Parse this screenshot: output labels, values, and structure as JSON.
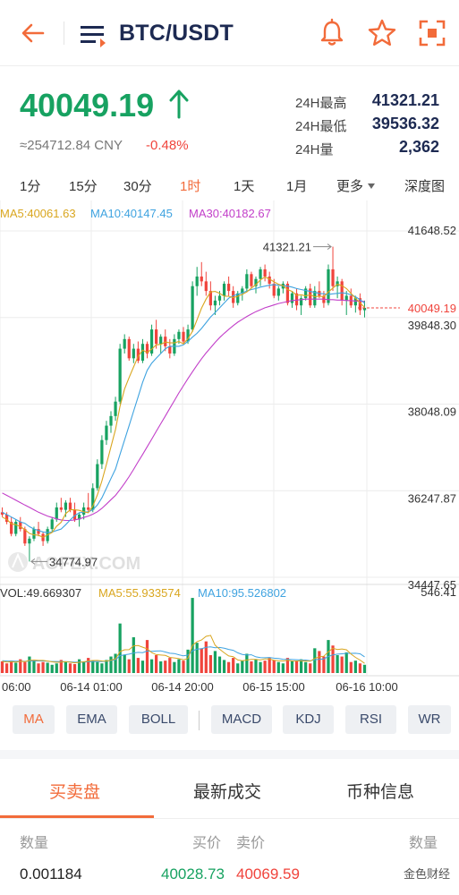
{
  "header": {
    "pair": "BTC/USDT",
    "icons": [
      "back-arrow-icon",
      "menu-list-icon",
      "bell-icon",
      "star-icon",
      "fullscreen-icon"
    ]
  },
  "ticker": {
    "last_price": "40049.19",
    "cny_value": "≈254712.84 CNY",
    "change_pct": "-0.48%",
    "high_label": "24H最高",
    "high_value": "41321.21",
    "low_label": "24H最低",
    "low_value": "39536.32",
    "vol_label": "24H量",
    "vol_value": "2,362"
  },
  "timeframes": [
    "1分",
    "15分",
    "30分",
    "1时",
    "1天",
    "1月",
    "更多",
    "深度图"
  ],
  "active_timeframe": "1时",
  "ma_legend": {
    "ma5": "MA5:40061.63",
    "ma10": "MA10:40147.45",
    "ma30": "MA30:40182.67"
  },
  "vol_legend": {
    "vol": "VOL:49.669307",
    "ma5": "MA5:55.933574",
    "ma10": "MA10:95.526802"
  },
  "watermark_logo": "AOFEX.COM",
  "colors": {
    "up": "#17a261",
    "down": "#f0443c",
    "accent": "#f26b3a",
    "ma5": "#d9a61f",
    "ma10": "#3fa3e0",
    "ma30": "#c23fc9",
    "navy": "#1d2a52"
  },
  "chart_data": {
    "type": "candlestick",
    "price_axis_ticks": [
      "41648.52",
      "39848.30",
      "38048.09",
      "36247.87",
      "34447.65"
    ],
    "current_price_label": "40049.19",
    "max_marker": "41321.21",
    "min_marker": "34774.97",
    "volume_axis_max": "546.41",
    "time_labels": [
      "06:00",
      "06-14 01:00",
      "06-14 20:00",
      "06-15 15:00",
      "06-16 10:00"
    ],
    "ylim": [
      34447.65,
      41648.52
    ],
    "candles": [
      [
        35800,
        35900,
        35700,
        35750
      ],
      [
        35750,
        35800,
        35550,
        35600
      ],
      [
        35600,
        35700,
        35300,
        35350
      ],
      [
        35350,
        35650,
        35300,
        35600
      ],
      [
        35600,
        35700,
        35400,
        35450
      ],
      [
        35450,
        35500,
        35100,
        35150
      ],
      [
        35150,
        35300,
        34775,
        35250
      ],
      [
        35250,
        35500,
        35200,
        35450
      ],
      [
        35450,
        35600,
        35300,
        35350
      ],
      [
        35350,
        35400,
        35100,
        35200
      ],
      [
        35200,
        35500,
        35150,
        35450
      ],
      [
        35450,
        35700,
        35400,
        35650
      ],
      [
        35650,
        36000,
        35600,
        35900
      ],
      [
        35900,
        36100,
        35800,
        35850
      ],
      [
        35850,
        36050,
        35700,
        36000
      ],
      [
        36000,
        36100,
        35800,
        35850
      ],
      [
        35850,
        36000,
        35600,
        35650
      ],
      [
        35650,
        35800,
        35500,
        35750
      ],
      [
        35750,
        36000,
        35650,
        35900
      ],
      [
        35900,
        36200,
        35800,
        35850
      ],
      [
        35850,
        36400,
        35800,
        36300
      ],
      [
        36300,
        36900,
        36250,
        36800
      ],
      [
        36800,
        37400,
        36700,
        37300
      ],
      [
        37300,
        37700,
        37200,
        37600
      ],
      [
        37600,
        37900,
        37450,
        37800
      ],
      [
        37800,
        38200,
        37700,
        38100
      ],
      [
        38100,
        39300,
        38050,
        39200
      ],
      [
        39200,
        39500,
        39100,
        39400
      ],
      [
        39400,
        39450,
        38950,
        39000
      ],
      [
        39000,
        39300,
        38900,
        39200
      ],
      [
        39200,
        39350,
        38900,
        38950
      ],
      [
        38950,
        39400,
        38900,
        39300
      ],
      [
        39300,
        39350,
        39000,
        39100
      ],
      [
        39100,
        39700,
        39050,
        39600
      ],
      [
        39600,
        39800,
        39200,
        39300
      ],
      [
        39300,
        39500,
        39100,
        39450
      ],
      [
        39450,
        39600,
        39150,
        39250
      ],
      [
        39250,
        39400,
        39000,
        39100
      ],
      [
        39100,
        39500,
        39050,
        39400
      ],
      [
        39400,
        39600,
        39300,
        39550
      ],
      [
        39550,
        39650,
        39300,
        39350
      ],
      [
        39350,
        39700,
        39300,
        39600
      ],
      [
        39600,
        40600,
        39550,
        40500
      ],
      [
        40500,
        40900,
        40300,
        40700
      ],
      [
        40700,
        41000,
        40500,
        40600
      ],
      [
        40600,
        40800,
        40300,
        40400
      ],
      [
        40400,
        40600,
        40000,
        40100
      ],
      [
        40100,
        40300,
        39900,
        40200
      ],
      [
        40200,
        40400,
        40100,
        40300
      ],
      [
        40300,
        40600,
        40200,
        40550
      ],
      [
        40550,
        40700,
        40300,
        40400
      ],
      [
        40400,
        40500,
        40050,
        40150
      ],
      [
        40150,
        40400,
        40100,
        40350
      ],
      [
        40350,
        40500,
        40200,
        40450
      ],
      [
        40450,
        40850,
        40400,
        40750
      ],
      [
        40750,
        40800,
        40450,
        40500
      ],
      [
        40500,
        40700,
        40350,
        40650
      ],
      [
        40650,
        40900,
        40500,
        40850
      ],
      [
        40850,
        40950,
        40600,
        40700
      ],
      [
        40700,
        40800,
        40450,
        40550
      ],
      [
        40550,
        40650,
        40250,
        40300
      ],
      [
        40300,
        40500,
        40200,
        40450
      ],
      [
        40450,
        40600,
        40350,
        40550
      ],
      [
        40550,
        40600,
        40100,
        40150
      ],
      [
        40150,
        40400,
        40050,
        40350
      ],
      [
        40350,
        40450,
        40000,
        40100
      ],
      [
        40100,
        40300,
        39900,
        40250
      ],
      [
        40250,
        40500,
        40200,
        40450
      ],
      [
        40450,
        40550,
        40050,
        40100
      ],
      [
        40100,
        40500,
        40050,
        40400
      ],
      [
        40400,
        40600,
        40250,
        40300
      ],
      [
        40300,
        40400,
        40050,
        40150
      ],
      [
        40150,
        40950,
        40100,
        40850
      ],
      [
        40850,
        41321.21,
        40400,
        40500
      ],
      [
        40500,
        40700,
        40250,
        40600
      ],
      [
        40600,
        40650,
        40100,
        40200
      ],
      [
        40200,
        40400,
        39900,
        40300
      ],
      [
        40300,
        40450,
        40050,
        40100
      ],
      [
        40100,
        40300,
        39950,
        40250
      ],
      [
        40250,
        40350,
        39900,
        40000
      ],
      [
        40000,
        40200,
        39850,
        40049.19
      ]
    ],
    "ma5": [
      35700,
      35650,
      35560,
      35540,
      35500,
      35440,
      35360,
      35330,
      35320,
      35280,
      35330,
      35380,
      35510,
      35590,
      35770,
      35850,
      35850,
      35840,
      35810,
      35790,
      35930,
      36160,
      36450,
      36800,
      37160,
      37520,
      38000,
      38360,
      38600,
      38820,
      39040,
      39170,
      39120,
      39190,
      39280,
      39290,
      39340,
      39320,
      39320,
      39350,
      39300,
      39410,
      39560,
      39800,
      40040,
      40230,
      40380,
      40390,
      40350,
      40290,
      40290,
      40260,
      40290,
      40330,
      40380,
      40460,
      40530,
      40630,
      40690,
      40650,
      40590,
      40540,
      40510,
      40430,
      40390,
      40310,
      40320,
      40300,
      40320,
      40280,
      40290,
      40280,
      40380,
      40460,
      40540,
      40510,
      40450,
      40350,
      40250,
      40150,
      40061
    ],
    "ma10": [
      35800,
      35750,
      35700,
      35650,
      35600,
      35570,
      35500,
      35450,
      35420,
      35390,
      35380,
      35390,
      35420,
      35450,
      35540,
      35640,
      35730,
      35790,
      35800,
      35810,
      35850,
      35950,
      36100,
      36300,
      36500,
      36700,
      37000,
      37300,
      37600,
      37900,
      38200,
      38500,
      38750,
      38900,
      39000,
      39100,
      39200,
      39250,
      39250,
      39250,
      39280,
      39350,
      39440,
      39520,
      39620,
      39740,
      39860,
      39950,
      40050,
      40150,
      40250,
      40300,
      40330,
      40360,
      40400,
      40430,
      40450,
      40480,
      40500,
      40520,
      40530,
      40520,
      40510,
      40500,
      40480,
      40450,
      40430,
      40410,
      40390,
      40370,
      40350,
      40340,
      40330,
      40340,
      40350,
      40360,
      40350,
      40320,
      40280,
      40220,
      40147
    ],
    "ma30": [
      36200,
      36150,
      36100,
      36050,
      36000,
      35950,
      35900,
      35850,
      35800,
      35760,
      35720,
      35690,
      35660,
      35640,
      35630,
      35630,
      35640,
      35660,
      35690,
      35720,
      35760,
      35810,
      35880,
      35970,
      36060,
      36150,
      36270,
      36400,
      36540,
      36690,
      36850,
      37000,
      37160,
      37320,
      37480,
      37640,
      37800,
      37960,
      38120,
      38280,
      38430,
      38580,
      38720,
      38860,
      38990,
      39110,
      39220,
      39330,
      39430,
      39520,
      39600,
      39680,
      39750,
      39810,
      39870,
      39920,
      39970,
      40010,
      40050,
      40080,
      40110,
      40140,
      40160,
      40180,
      40200,
      40210,
      40220,
      40230,
      40230,
      40230,
      40230,
      40230,
      40220,
      40220,
      40210,
      40210,
      40200,
      40200,
      40190,
      40190,
      40183
    ],
    "volume_max": 546.41,
    "volumes": [
      85,
      70,
      90,
      75,
      100,
      80,
      120,
      90,
      70,
      80,
      75,
      60,
      70,
      95,
      80,
      70,
      65,
      100,
      85,
      110,
      90,
      80,
      70,
      95,
      120,
      140,
      360,
      130,
      100,
      260,
      110,
      90,
      240,
      100,
      130,
      85,
      90,
      110,
      80,
      100,
      90,
      170,
      546,
      220,
      180,
      230,
      130,
      160,
      120,
      95,
      80,
      110,
      70,
      90,
      140,
      85,
      100,
      80,
      90,
      110,
      95,
      80,
      70,
      110,
      85,
      90,
      100,
      80,
      70,
      180,
      160,
      120,
      240,
      200,
      130,
      120,
      150,
      80,
      90,
      70,
      60
    ],
    "vol_ma5": [
      85,
      80,
      82,
      80,
      85,
      83,
      92,
      94,
      92,
      92,
      87,
      81,
      78,
      80,
      82,
      79,
      74,
      78,
      81,
      88,
      91,
      92,
      88,
      87,
      93,
      103,
      156,
      169,
      170,
      198,
      200,
      188,
      176,
      148,
      134,
      131,
      128,
      114,
      110,
      105,
      96,
      106,
      201,
      228,
      240,
      267,
      274,
      202,
      173,
      147,
      124,
      119,
      95,
      90,
      94,
      99,
      99,
      95,
      103,
      102,
      93,
      90,
      88,
      93,
      88,
      87,
      90,
      88,
      86,
      106,
      118,
      122,
      154,
      180,
      171,
      175,
      169,
      138,
      114,
      94,
      70
    ],
    "vol_ma10": [
      90,
      88,
      87,
      86,
      86,
      85,
      87,
      88,
      88,
      88,
      86,
      84,
      84,
      83,
      83,
      81,
      79,
      80,
      80,
      82,
      83,
      84,
      84,
      86,
      91,
      97,
      126,
      133,
      137,
      146,
      150,
      148,
      160,
      158,
      160,
      161,
      153,
      144,
      142,
      133,
      125,
      131,
      161,
      174,
      176,
      187,
      190,
      184,
      186,
      180,
      172,
      165,
      147,
      135,
      131,
      133,
      118,
      112,
      111,
      113,
      108,
      106,
      100,
      99,
      98,
      97,
      95,
      94,
      90,
      97,
      100,
      103,
      120,
      132,
      137,
      140,
      143,
      143,
      144,
      140,
      118
    ]
  },
  "indicators": [
    "MA",
    "EMA",
    "BOLL",
    "MACD",
    "KDJ",
    "RSI",
    "WR"
  ],
  "active_indicator": "MA",
  "tabs": [
    "买卖盘",
    "最新成交",
    "币种信息"
  ],
  "orderbook": {
    "qty_header": "数量",
    "bid_header": "买价",
    "ask_header": "卖价",
    "qty_header_right": "数量",
    "first_qty": "0.001184",
    "first_bid": "40028.73",
    "first_ask": "40069.59"
  },
  "watermark_text": "金色财经"
}
